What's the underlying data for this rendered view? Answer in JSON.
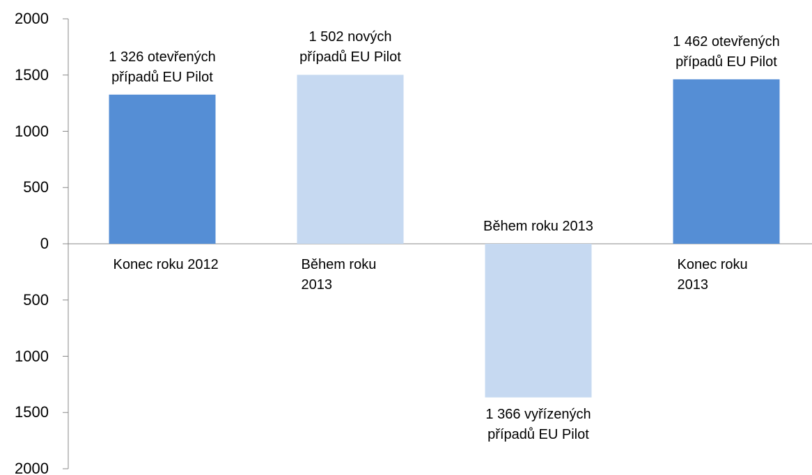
{
  "chart_data": {
    "type": "bar",
    "categories": [
      "Konec roku 2012",
      "Během roku 2013",
      "Během roku 2013",
      "Konec roku 2013"
    ],
    "values": [
      1326,
      1502,
      -1366,
      1462
    ],
    "value_labels": [
      "1 326 otevřených případů EU Pilot",
      "1 502 nových případů EU Pilot",
      "1 366 vyřízených případů EU Pilot",
      "1 462 otevřených případů EU Pilot"
    ],
    "colors": [
      "#558ed5",
      "#c6d9f1",
      "#c6d9f1",
      "#558ed5"
    ],
    "ylim": [
      -2000,
      2000
    ],
    "yticks": [
      {
        "value": -2000,
        "label": "2000"
      },
      {
        "value": -1500,
        "label": "1500"
      },
      {
        "value": -1000,
        "label": "1000"
      },
      {
        "value": -500,
        "label": "500"
      },
      0,
      500,
      1000,
      1500,
      2000
    ],
    "grid": false
  }
}
